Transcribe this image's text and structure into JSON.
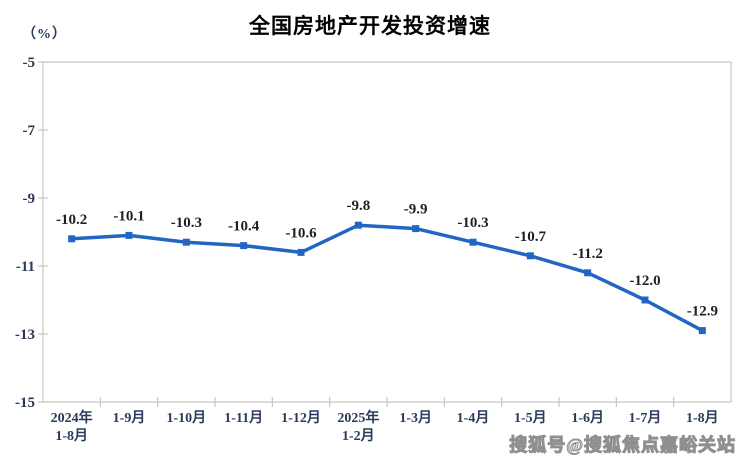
{
  "page": {
    "title": "全国房地产开发投资增速",
    "unit_label": "（%）",
    "watermark": "搜狐号@搜狐焦点嘉峪关站"
  },
  "chart_data": {
    "type": "line",
    "title": "全国房地产开发投资增速",
    "unit": "%",
    "categories": [
      "2024年\n1-8月",
      "1-9月",
      "1-10月",
      "1-11月",
      "1-12月",
      "2025年\n1-2月",
      "1-3月",
      "1-4月",
      "1-5月",
      "1-6月",
      "1-7月",
      "1-8月"
    ],
    "values": [
      -10.2,
      -10.1,
      -10.3,
      -10.4,
      -10.6,
      -9.8,
      -9.9,
      -10.3,
      -10.7,
      -11.2,
      -12.0,
      -12.9
    ],
    "data_labels": [
      "-10.2",
      "-10.1",
      "-10.3",
      "-10.4",
      "-10.6",
      "-9.8",
      "-9.9",
      "-10.3",
      "-10.7",
      "-11.2",
      "-12.0",
      "-12.9"
    ],
    "ylim": [
      -15,
      -5
    ],
    "yticks": [
      -5,
      -7,
      -9,
      -11,
      -13,
      -15
    ],
    "xlabel": "",
    "ylabel": "%",
    "grid": false,
    "legend": "none",
    "line_color": "#2266c4",
    "marker": "square",
    "marker_size": 7,
    "axis_color": "#c6c6c6",
    "data_label_color": "#1b1f27",
    "tick_label_color": "#2b3a5c"
  }
}
